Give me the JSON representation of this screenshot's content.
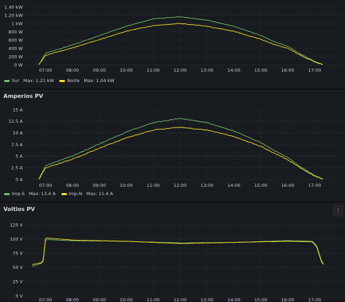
{
  "colors": {
    "green": "#73bf69",
    "yellow": "#fade2a"
  },
  "x_ticks": [
    "07:00",
    "08:00",
    "09:00",
    "10:00",
    "11:00",
    "12:00",
    "13:00",
    "14:00",
    "15:00",
    "16:00",
    "17:00"
  ],
  "panels": [
    {
      "title": "",
      "y_ticks": [
        "0 W",
        "200 W",
        "400 W",
        "600 W",
        "800 W",
        "1 kW",
        "1.20 kW",
        "1.40 kW"
      ],
      "legend": [
        {
          "name": "Sur",
          "max_label": "Max: 1.21 kW",
          "color": "#73bf69"
        },
        {
          "name": "Norte",
          "max_label": "Max: 1.04 kW",
          "color": "#fade2a"
        }
      ]
    },
    {
      "title": "Amperios PV",
      "y_ticks": [
        "0 A",
        "2.5 A",
        "5 A",
        "7.5 A",
        "10 A",
        "12.5 A",
        "15 A"
      ],
      "legend": [
        {
          "name": "Imp-S",
          "max_label": "Max: 13.4 A",
          "color": "#73bf69"
        },
        {
          "name": "Imp-N",
          "max_label": "Max: 11.4 A",
          "color": "#fade2a"
        }
      ]
    },
    {
      "title": "Voltios PV",
      "menu_icon": "vertical-ellipsis-icon",
      "menu_glyph": "⋮",
      "y_ticks": [
        "0 V",
        "25 V",
        "50 V",
        "75 V",
        "100 V",
        "125 V"
      ],
      "legend": []
    }
  ],
  "chart_data": [
    {
      "type": "line",
      "x": [
        "06:45",
        "07:00",
        "07:30",
        "08:00",
        "09:00",
        "10:00",
        "11:00",
        "12:00",
        "13:00",
        "14:00",
        "15:00",
        "15:30",
        "16:00",
        "16:30",
        "17:00",
        "17:20"
      ],
      "ylim": [
        0,
        1400
      ],
      "series": [
        {
          "name": "Sur",
          "values": [
            0,
            280,
            380,
            480,
            710,
            930,
            1110,
            1160,
            1080,
            930,
            710,
            560,
            450,
            250,
            80,
            0
          ]
        },
        {
          "name": "Norte",
          "values": [
            0,
            230,
            320,
            410,
            610,
            810,
            950,
            1000,
            930,
            810,
            620,
            490,
            400,
            220,
            70,
            0
          ]
        }
      ]
    },
    {
      "type": "line",
      "x": [
        "06:45",
        "07:00",
        "07:30",
        "08:00",
        "09:00",
        "10:00",
        "11:00",
        "12:00",
        "13:00",
        "14:00",
        "15:00",
        "15:30",
        "16:00",
        "16:30",
        "17:00",
        "17:20"
      ],
      "ylim": [
        0,
        15
      ],
      "series": [
        {
          "name": "Imp-S",
          "values": [
            0,
            2.9,
            4.0,
            5.0,
            7.6,
            10.2,
            12.2,
            13.1,
            12.2,
            10.4,
            7.9,
            6.2,
            4.7,
            2.6,
            0.8,
            0
          ]
        },
        {
          "name": "Imp-N",
          "values": [
            0,
            2.4,
            3.4,
            4.3,
            6.7,
            8.9,
            10.6,
            11.2,
            10.6,
            9.2,
            7.1,
            5.6,
            4.2,
            2.3,
            0.7,
            0
          ]
        }
      ]
    },
    {
      "type": "line",
      "x": [
        "06:30",
        "06:50",
        "06:55",
        "07:00",
        "08:00",
        "10:00",
        "12:00",
        "14:00",
        "16:00",
        "16:55",
        "17:05",
        "17:15",
        "17:20"
      ],
      "ylim": [
        0,
        125
      ],
      "series": [
        {
          "name": "",
          "values": [
            52,
            57,
            60,
            99,
            97,
            96,
            93,
            94,
            97,
            96,
            88,
            62,
            56
          ]
        },
        {
          "name": "",
          "values": [
            55,
            58,
            64,
            102,
            98,
            96,
            92,
            94,
            96,
            95,
            85,
            60,
            55
          ]
        }
      ]
    }
  ]
}
